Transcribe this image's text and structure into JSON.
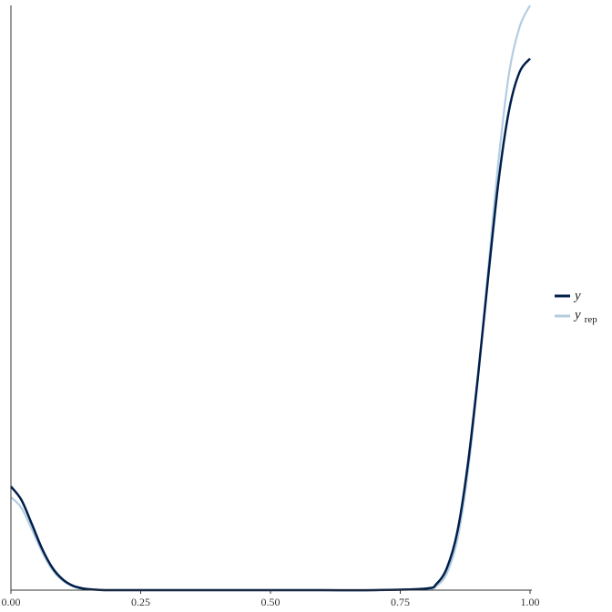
{
  "chart_data": {
    "type": "line",
    "title": "",
    "xlabel": "",
    "ylabel": "",
    "xlim": [
      0,
      1
    ],
    "ylim": [
      0,
      11
    ],
    "x_ticks": [
      "0.00",
      "0.25",
      "0.50",
      "0.75",
      "1.00"
    ],
    "y_axis_labels_visible": false,
    "grid": false,
    "legend_position": "right",
    "x": [
      0,
      0.02,
      0.04,
      0.06,
      0.08,
      0.1,
      0.12,
      0.14,
      0.16,
      0.18,
      0.2,
      0.3,
      0.4,
      0.5,
      0.6,
      0.7,
      0.8,
      0.82,
      0.84,
      0.86,
      0.88,
      0.9,
      0.92,
      0.94,
      0.96,
      0.98,
      1.0
    ],
    "series": [
      {
        "name": "y",
        "color": "#011f4b",
        "values": [
          1.95,
          1.7,
          1.25,
          0.78,
          0.42,
          0.2,
          0.08,
          0.03,
          0.01,
          0,
          0,
          0,
          0,
          0,
          0,
          0,
          0.03,
          0.12,
          0.42,
          1.1,
          2.35,
          4.05,
          5.95,
          7.75,
          9.05,
          9.75,
          10.0
        ]
      },
      {
        "name": "y_rep",
        "name_main": "y",
        "name_sub": "rep",
        "color": "#b3cde0",
        "values": [
          1.75,
          1.55,
          1.15,
          0.72,
          0.38,
          0.18,
          0.07,
          0.02,
          0.01,
          0,
          0,
          0,
          0,
          0,
          0,
          0,
          0.02,
          0.08,
          0.32,
          0.95,
          2.2,
          4.0,
          6.1,
          8.15,
          9.75,
          10.6,
          11.0
        ]
      }
    ]
  }
}
